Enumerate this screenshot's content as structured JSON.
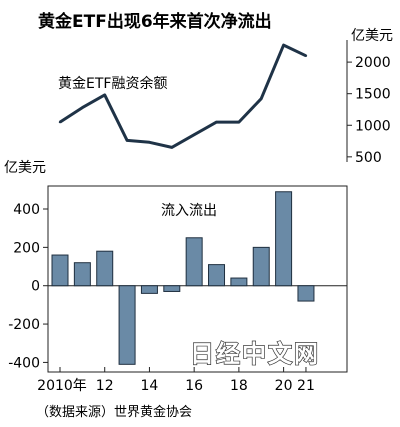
{
  "title": "黄金ETF出现6年来首次净流出",
  "source": "（数据来源）世界黄金协会",
  "watermark": "日经中文网",
  "chart_data": [
    {
      "type": "line",
      "series": [
        {
          "name": "黄金ETF融资余额",
          "values": [
            1050,
            1280,
            1480,
            760,
            730,
            650,
            850,
            1050,
            1050,
            1420,
            2270,
            2100
          ]
        }
      ],
      "x": [
        2010,
        2011,
        2012,
        2013,
        2014,
        2015,
        2016,
        2017,
        2018,
        2019,
        2020,
        2021
      ],
      "ylabel": "亿美元",
      "yticks": [
        500,
        1000,
        1500,
        2000
      ],
      "ytick_labels": [
        "500",
        "1000",
        "1500",
        "2000"
      ],
      "ylim": [
        450,
        2350
      ],
      "axis_side": "right",
      "line_color": "#1f3347"
    },
    {
      "type": "bar",
      "series": [
        {
          "name": "流入流出",
          "values": [
            160,
            120,
            180,
            -410,
            -40,
            -30,
            250,
            110,
            40,
            200,
            490,
            -80
          ]
        }
      ],
      "x": [
        2010,
        2011,
        2012,
        2013,
        2014,
        2015,
        2016,
        2017,
        2018,
        2019,
        2020,
        2021
      ],
      "ylabel": "亿美元",
      "yticks": [
        -400,
        -200,
        0,
        200,
        400
      ],
      "ytick_labels": [
        "-400",
        "-200",
        "0",
        "200",
        "400"
      ],
      "ylim": [
        -450,
        520
      ],
      "axis_side": "left",
      "xtick_labels": [
        "2010年",
        "12",
        "14",
        "16",
        "18",
        "20",
        "21"
      ],
      "xtick_values": [
        2010,
        2012,
        2014,
        2016,
        2018,
        2020,
        2021
      ],
      "bar_color": "#6a8aa6",
      "bar_edge": "#1f2f3f"
    }
  ]
}
